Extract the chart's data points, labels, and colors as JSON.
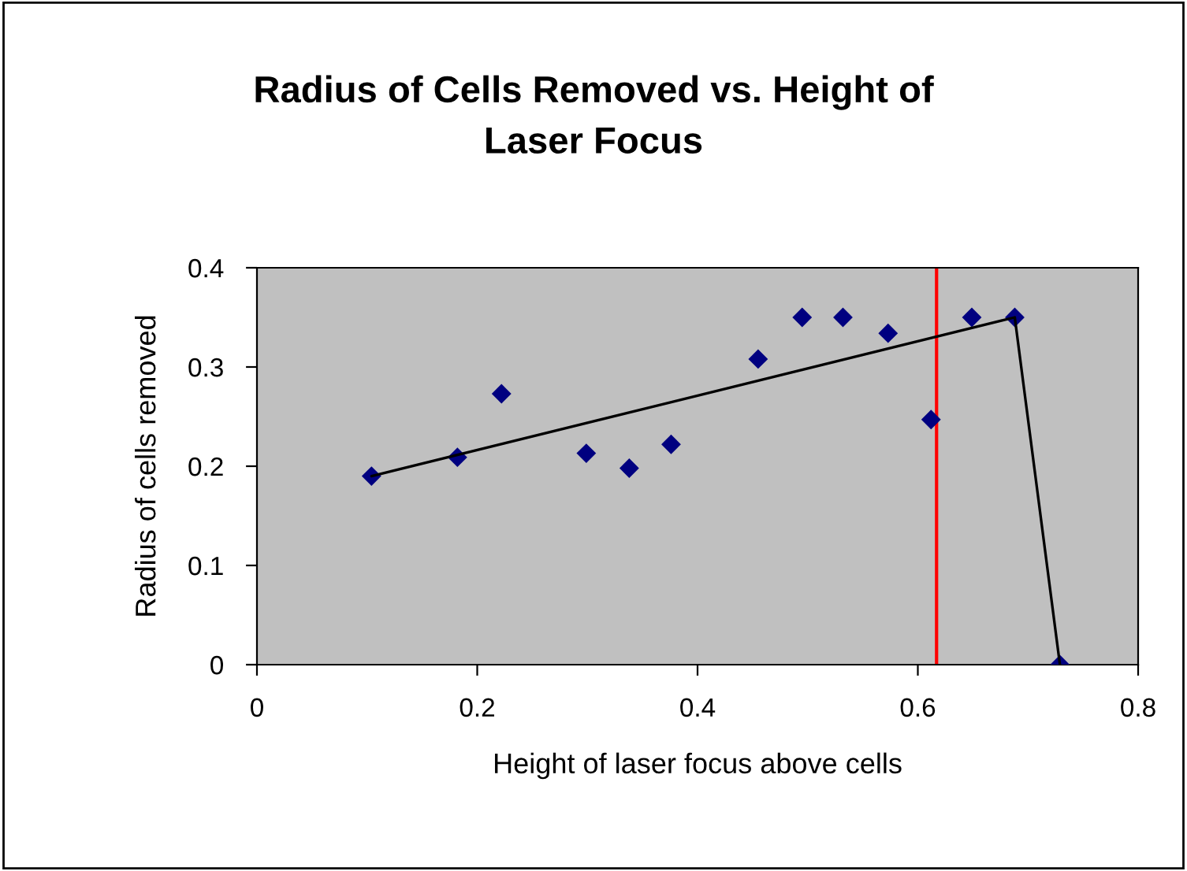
{
  "chart_data": {
    "type": "scatter",
    "title": "Radius of Cells Removed vs. Height of\nLaser Focus",
    "xlabel": "Height of laser focus above cells",
    "ylabel": "Radius of cells removed",
    "series": [
      {
        "color": "#000080",
        "marker": "diamond",
        "x": [
          0.104,
          0.182,
          0.222,
          0.299,
          0.338,
          0.376,
          0.455,
          0.495,
          0.532,
          0.573,
          0.612,
          0.649,
          0.688,
          0.729
        ],
        "values": [
          0.19,
          0.209,
          0.273,
          0.213,
          0.198,
          0.222,
          0.308,
          0.35,
          0.35,
          0.334,
          0.247,
          0.35,
          0.35,
          0
        ]
      },
      {
        "type": "line",
        "color": "#000000",
        "marker": "none",
        "x": [
          0.104,
          0.688,
          0.729
        ],
        "values": [
          0.19,
          0.35,
          0
        ]
      }
    ],
    "ref_lines": [
      {
        "axis": "x",
        "value": 0.617,
        "color": "#ff0000"
      }
    ],
    "xlim": [
      0,
      0.8
    ],
    "xticks": [
      0,
      0.2,
      0.4,
      0.6,
      0.8
    ],
    "ylim": [
      0,
      0.4
    ],
    "yticks": [
      0,
      0.1,
      0.2,
      0.3,
      0.4
    ],
    "grid": false,
    "legend": false
  }
}
